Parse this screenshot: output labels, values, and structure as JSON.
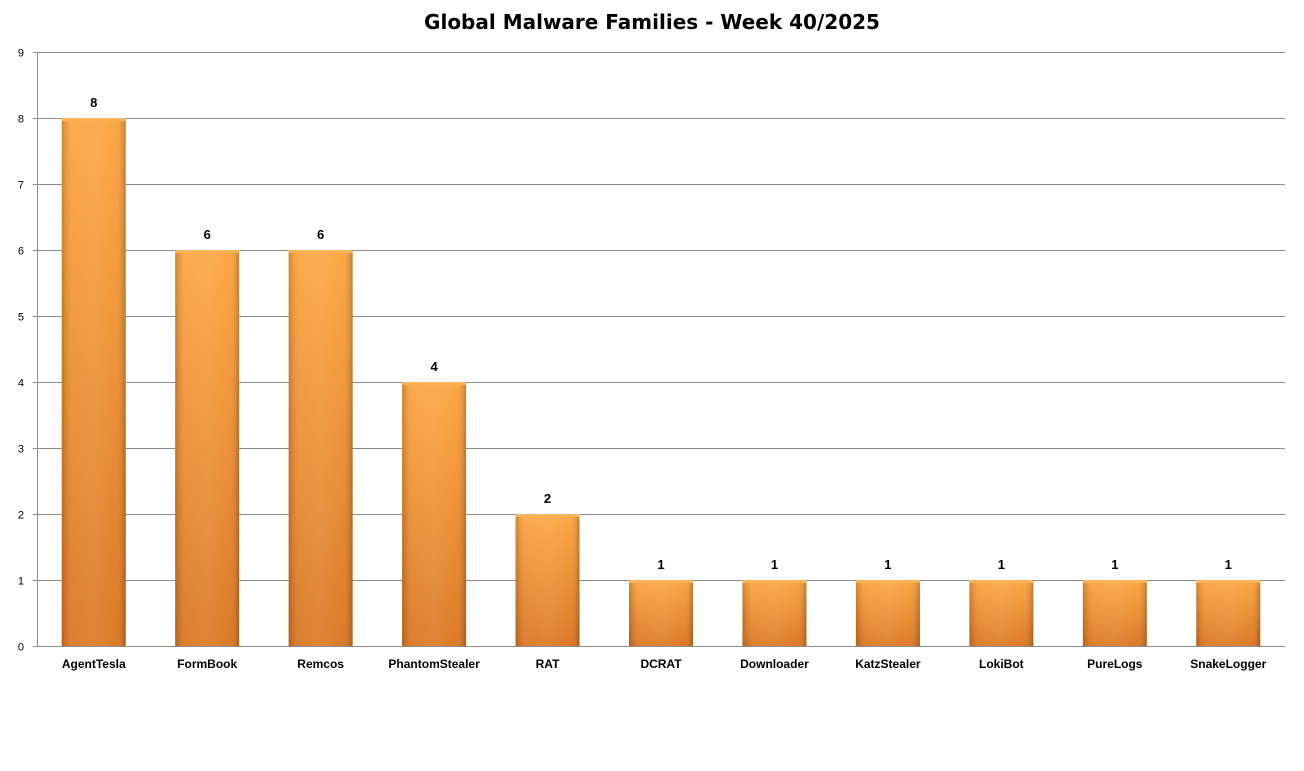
{
  "chart_data": {
    "type": "bar",
    "title": "Global Malware Families - Week 40/2025",
    "xlabel": "",
    "ylabel": "",
    "categories": [
      "AgentTesla",
      "FormBook",
      "Remcos",
      "PhantomStealer",
      "RAT",
      "DCRAT",
      "Downloader",
      "KatzStealer",
      "LokiBot",
      "PureLogs",
      "SnakeLogger"
    ],
    "values": [
      8,
      6,
      6,
      4,
      2,
      1,
      1,
      1,
      1,
      1,
      1
    ],
    "ylim": [
      0,
      9
    ],
    "yticks": [
      "0",
      "1",
      "2",
      "3",
      "4",
      "5",
      "6",
      "7",
      "8",
      "9"
    ],
    "grid": true,
    "legend": "none",
    "bar_color": "#F7962E",
    "bar_color_dark": "#C96A14",
    "data_labels": true
  }
}
